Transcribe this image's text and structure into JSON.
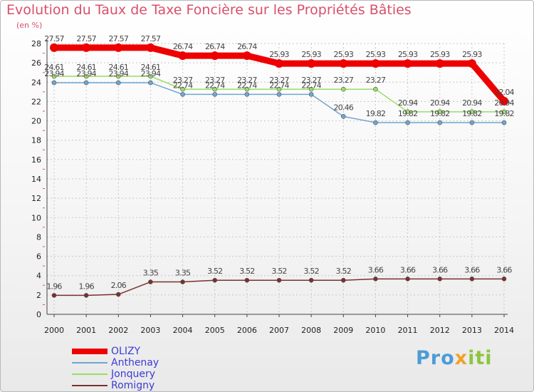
{
  "chart_data": {
    "type": "line",
    "title": "Evolution du Taux de Taxe Foncière sur les Propriétés Bâties",
    "ylabel": "(en %)",
    "xlabel": "",
    "categories": [
      "2000",
      "2001",
      "2002",
      "2003",
      "2004",
      "2005",
      "2006",
      "2007",
      "2008",
      "2009",
      "2010",
      "2011",
      "2012",
      "2013",
      "2014"
    ],
    "ylim": [
      0,
      28
    ],
    "yticks": [
      "0",
      "2",
      "4",
      "6",
      "8",
      "10",
      "12",
      "14",
      "16",
      "18",
      "20",
      "22",
      "24",
      "26",
      "28"
    ],
    "grid": true,
    "legend_position": "bottom-left",
    "series": [
      {
        "name": "OLIZY",
        "color": "#ee0000",
        "values": [
          27.57,
          27.57,
          27.57,
          27.57,
          26.74,
          26.74,
          26.74,
          25.93,
          25.93,
          25.93,
          25.93,
          25.93,
          25.93,
          25.93,
          22.04
        ],
        "labels": [
          "27.57",
          "27.57",
          "27.57",
          "27.57",
          "26.74",
          "26.74",
          "26.74",
          "25.93",
          "25.93",
          "25.93",
          "25.93",
          "25.93",
          "25.93",
          "25.93",
          "22.04"
        ]
      },
      {
        "name": "Anthenay",
        "color": "#6fa6d2",
        "values": [
          23.94,
          23.94,
          23.94,
          23.94,
          22.74,
          22.74,
          22.74,
          22.74,
          22.74,
          20.46,
          19.82,
          19.82,
          19.82,
          19.82,
          19.82
        ],
        "labels": [
          "23.94",
          "23.94",
          "23.94",
          "23.94",
          "22.74",
          "22.74",
          "22.74",
          "22.74",
          "22.74",
          "20.46",
          "19.82",
          "19.82",
          "19.82",
          "19.82",
          "19.82"
        ]
      },
      {
        "name": "Jonquery",
        "color": "#99dd66",
        "values": [
          24.61,
          24.61,
          24.61,
          24.61,
          23.27,
          23.27,
          23.27,
          23.27,
          23.27,
          23.27,
          23.27,
          20.94,
          20.94,
          20.94,
          20.94
        ],
        "labels": [
          "24.61",
          "24.61",
          "24.61",
          "24.61",
          "23.27",
          "23.27",
          "23.27",
          "23.27",
          "23.27",
          "23.27",
          "23.27",
          "20.94",
          "20.94",
          "20.94",
          "20.94"
        ]
      },
      {
        "name": "Romigny",
        "color": "#7a3030",
        "values": [
          1.96,
          1.96,
          2.06,
          3.35,
          3.35,
          3.52,
          3.52,
          3.52,
          3.52,
          3.52,
          3.66,
          3.66,
          3.66,
          3.66,
          3.66
        ],
        "labels": [
          "1.96",
          "1.96",
          "2.06",
          "3.35",
          "3.35",
          "3.52",
          "3.52",
          "3.52",
          "3.52",
          "3.52",
          "3.66",
          "3.66",
          "3.66",
          "3.66",
          "3.66"
        ]
      }
    ]
  },
  "legend": {
    "items": [
      {
        "label": "OLIZY"
      },
      {
        "label": "Anthenay"
      },
      {
        "label": "Jonquery"
      },
      {
        "label": "Romigny"
      }
    ]
  },
  "watermark": {
    "part1": "Pro",
    "part2": "x",
    "part3": "iti"
  }
}
